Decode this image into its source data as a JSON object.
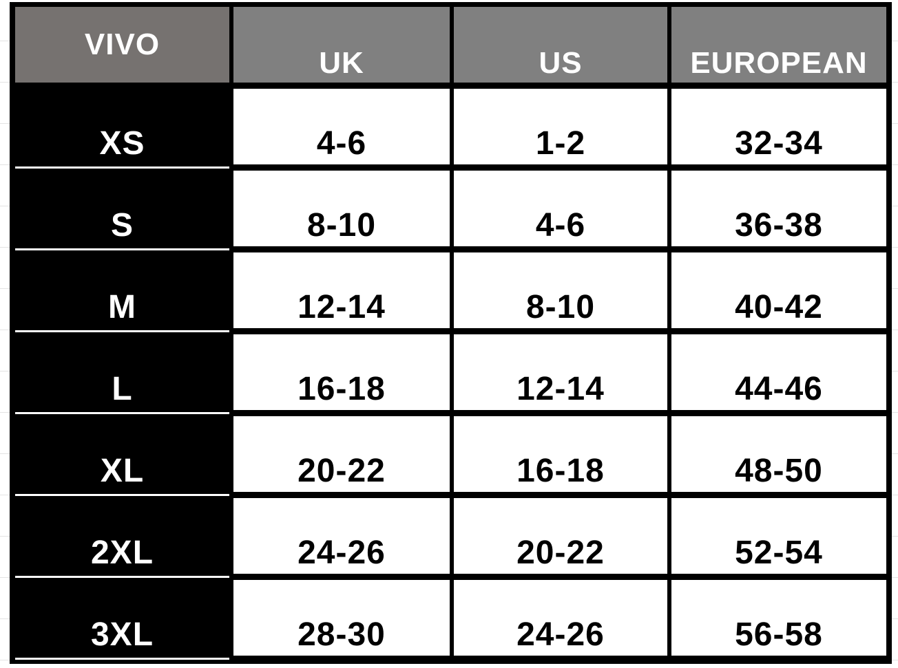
{
  "headers": [
    "VIVO",
    "UK",
    "US",
    "EUROPEAN"
  ],
  "rows": [
    [
      "XS",
      "4-6",
      "1-2",
      "32-34"
    ],
    [
      "S",
      "8-10",
      "4-6",
      "36-38"
    ],
    [
      "M",
      "12-14",
      "8-10",
      "40-42"
    ],
    [
      "L",
      "16-18",
      "12-14",
      "44-46"
    ],
    [
      "XL",
      "20-22",
      "16-18",
      "48-50"
    ],
    [
      "2XL",
      "24-26",
      "20-22",
      "52-54"
    ],
    [
      "3XL",
      "28-30",
      "24-26",
      "56-58"
    ]
  ],
  "colors": {
    "header_first": "#767270",
    "header": "#808080",
    "size_cell": "#000000",
    "value_cell": "#ffffff"
  }
}
